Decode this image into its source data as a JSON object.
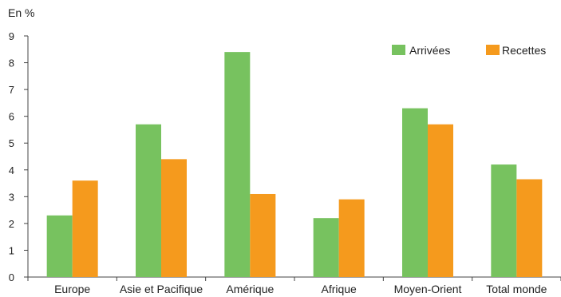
{
  "chart_data": {
    "type": "bar",
    "ylabel": "En %",
    "ylim": [
      0,
      9
    ],
    "yticks": [
      0,
      1,
      2,
      3,
      4,
      5,
      6,
      7,
      8,
      9
    ],
    "grid": false,
    "legend_position": "top-right",
    "categories": [
      "Europe",
      "Asie et Pacifique",
      "Amérique",
      "Afrique",
      "Moyen-Orient",
      "Total monde"
    ],
    "series": [
      {
        "name": "Arrivées",
        "color": "#77c25f",
        "values": [
          2.3,
          5.7,
          8.4,
          2.2,
          6.3,
          4.2
        ]
      },
      {
        "name": "Recettes",
        "color": "#f59a1d",
        "values": [
          3.6,
          4.4,
          3.1,
          2.9,
          5.7,
          3.65
        ]
      }
    ]
  }
}
